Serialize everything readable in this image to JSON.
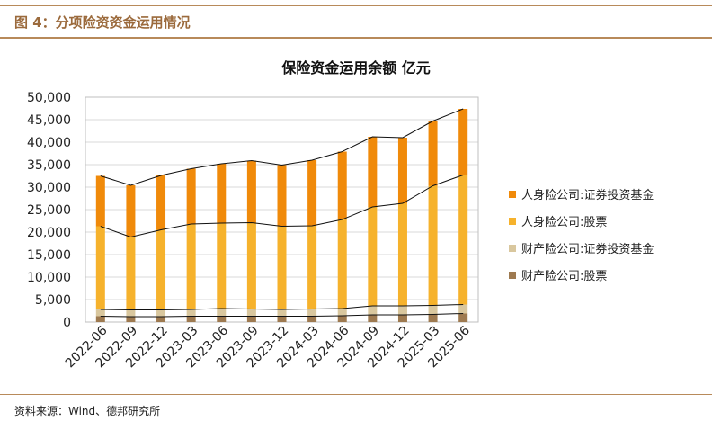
{
  "figure": {
    "label": "图 4：分项险资资金运用情况",
    "source": "资料来源：Wind、德邦研究所"
  },
  "colors": {
    "rule": "#b88a5a",
    "label": "#9b6a3c"
  },
  "chart_data": {
    "type": "bar",
    "stacked": true,
    "title": "保险资金运用余额 亿元",
    "categories": [
      "2022-06",
      "2022-09",
      "2022-12",
      "2023-03",
      "2023-06",
      "2023-09",
      "2023-12",
      "2024-03",
      "2024-06",
      "2024-09",
      "2024-12",
      "2025-03",
      "2025-06"
    ],
    "ylim": [
      0,
      50000
    ],
    "yticks": [
      "0",
      "5,000",
      "10,000",
      "15,000",
      "20,000",
      "25,000",
      "30,000",
      "35,000",
      "40,000",
      "45,000",
      "50,000"
    ],
    "ytick_values": [
      0,
      5000,
      10000,
      15000,
      20000,
      25000,
      30000,
      35000,
      40000,
      45000,
      50000
    ],
    "grid": true,
    "legend_position": "right",
    "series": [
      {
        "name": "财产险公司:股票",
        "color": "#9e7a50",
        "values": [
          1300,
          1200,
          1200,
          1300,
          1300,
          1300,
          1300,
          1300,
          1400,
          1600,
          1600,
          1700,
          1900
        ]
      },
      {
        "name": "财产险公司:证券投资基金",
        "color": "#d9c79e",
        "values": [
          1500,
          1500,
          1500,
          1500,
          1700,
          1600,
          1500,
          1600,
          1600,
          2000,
          2000,
          2000,
          2000
        ]
      },
      {
        "name": "人身险公司:股票",
        "color": "#f6b22c",
        "values": [
          18500,
          16200,
          17800,
          19000,
          19000,
          19200,
          18500,
          18500,
          19800,
          22000,
          22800,
          26600,
          28800
        ]
      },
      {
        "name": "人身险公司:证券投资基金",
        "color": "#f08a0a",
        "values": [
          11200,
          11500,
          12100,
          12300,
          13200,
          13800,
          13600,
          14600,
          15100,
          15600,
          14600,
          14400,
          14700
        ]
      }
    ]
  }
}
